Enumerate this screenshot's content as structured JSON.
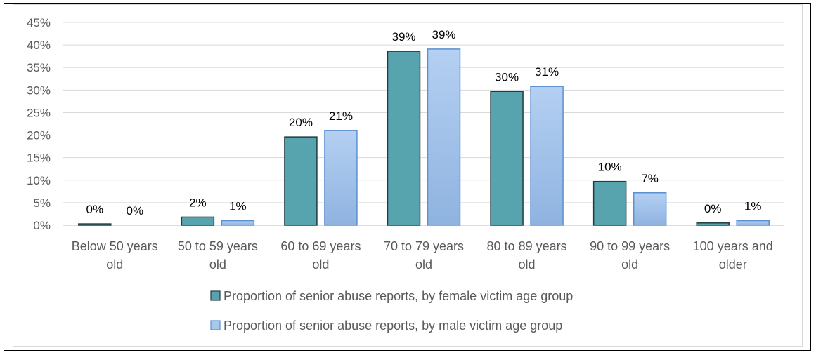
{
  "chart_data": {
    "type": "bar",
    "categories": [
      [
        "Below 50 years",
        "old"
      ],
      [
        "50 to 59 years",
        "old"
      ],
      [
        "60 to 69 years",
        "old"
      ],
      [
        "70 to 79 years",
        "old"
      ],
      [
        "80 to 89 years",
        "old"
      ],
      [
        "90 to 99 years",
        "old"
      ],
      [
        "100 years and",
        "older"
      ]
    ],
    "series": [
      {
        "name": "Proportion of senior abuse reports, by female victim age group",
        "values": [
          0.3,
          1.8,
          19.6,
          38.6,
          29.7,
          9.7,
          0.5
        ],
        "labels": [
          "0%",
          "2%",
          "20%",
          "39%",
          "30%",
          "10%",
          "0%"
        ],
        "color": "#58a4ae",
        "stroke": "#1f3d40"
      },
      {
        "name": "Proportion of senior abuse reports, by male victim age group",
        "values": [
          0,
          1.0,
          21.0,
          39.1,
          30.8,
          7.2,
          1.0
        ],
        "labels": [
          "0%",
          "1%",
          "21%",
          "39%",
          "31%",
          "7%",
          "1%"
        ],
        "color": "#a9c8ee",
        "stroke": "#5b8fcf"
      }
    ],
    "ylim": [
      0,
      45
    ],
    "yticks": [
      "0%",
      "5%",
      "10%",
      "15%",
      "20%",
      "25%",
      "30%",
      "35%",
      "40%",
      "45%"
    ],
    "ytick_values": [
      0,
      5,
      10,
      15,
      20,
      25,
      30,
      35,
      40,
      45
    ],
    "grid": true,
    "legend_position": "bottom"
  }
}
